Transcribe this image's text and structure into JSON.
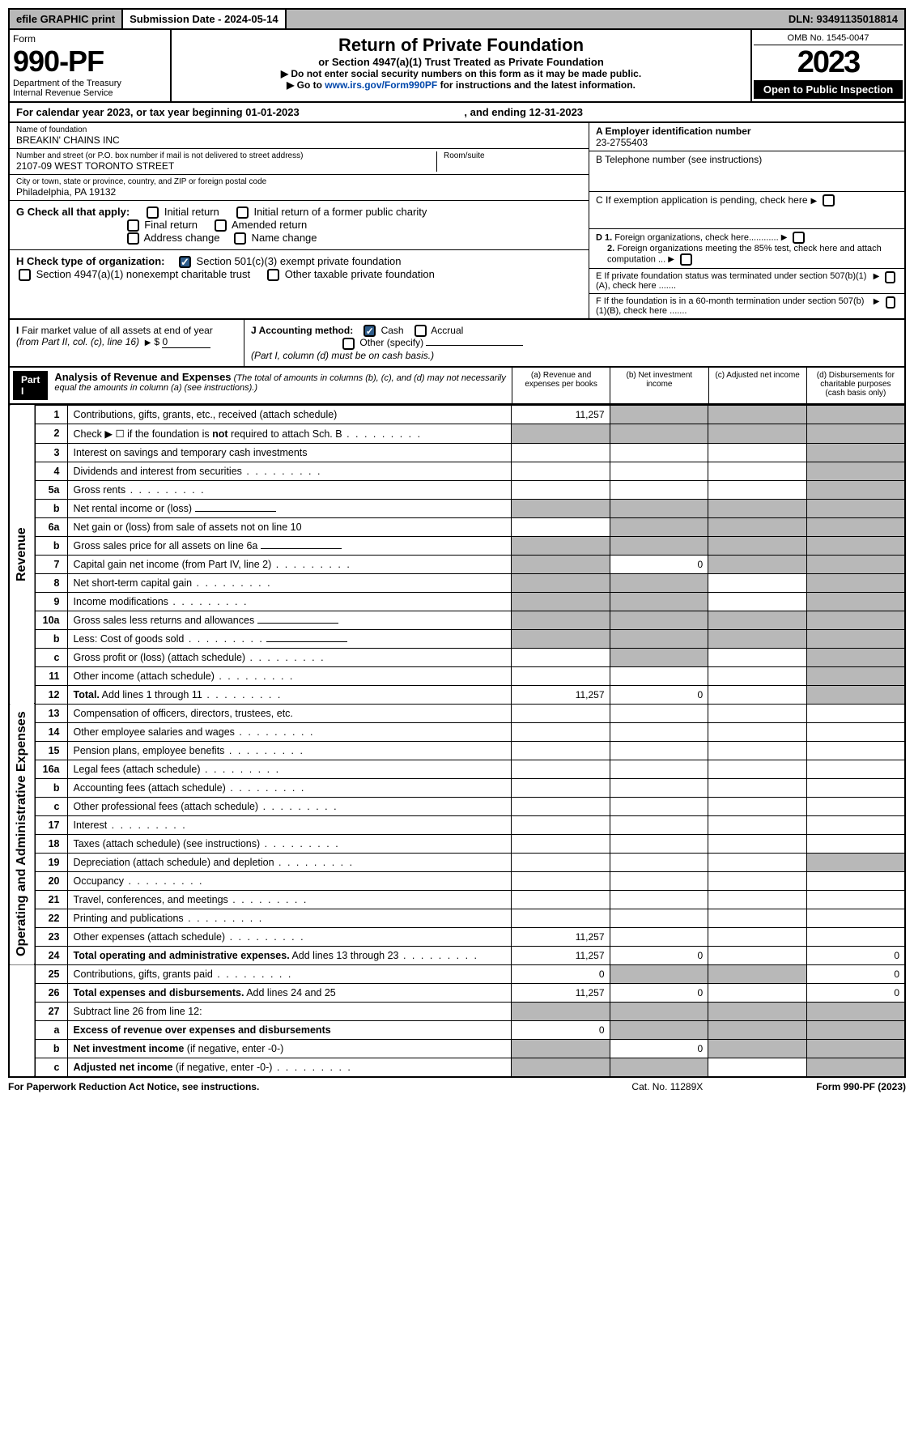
{
  "topbar": {
    "efile": "efile GRAPHIC print",
    "submission_label": "Submission Date - 2024-05-14",
    "dln": "DLN: 93491135018814"
  },
  "header": {
    "form_label": "Form",
    "form_no": "990-PF",
    "dept": "Department of the Treasury\nInternal Revenue Service",
    "title": "Return of Private Foundation",
    "subtitle": "or Section 4947(a)(1) Trust Treated as Private Foundation",
    "note1": "▶ Do not enter social security numbers on this form as it may be made public.",
    "note2_pre": "▶ Go to ",
    "note2_link": "www.irs.gov/Form990PF",
    "note2_post": " for instructions and the latest information.",
    "omb": "OMB No. 1545-0047",
    "year": "2023",
    "open": "Open to Public Inspection"
  },
  "calyear": {
    "pre": "For calendar year 2023, or tax year beginning ",
    "begin": "01-01-2023",
    "mid": ", and ending ",
    "end": "12-31-2023"
  },
  "info": {
    "name_label": "Name of foundation",
    "name": "BREAKIN' CHAINS INC",
    "addr_label": "Number and street (or P.O. box number if mail is not delivered to street address)",
    "addr": "2107-09 WEST TORONTO STREET",
    "room_label": "Room/suite",
    "city_label": "City or town, state or province, country, and ZIP or foreign postal code",
    "city": "Philadelphia, PA  19132",
    "a_label": "A Employer identification number",
    "a_val": "23-2755403",
    "b_label": "B Telephone number (see instructions)",
    "c_label": "C If exemption application is pending, check here",
    "d1": "D 1. Foreign organizations, check here............",
    "d2": "2. Foreign organizations meeting the 85% test, check here and attach computation ...",
    "e_label": "E  If private foundation status was terminated under section 507(b)(1)(A), check here .......",
    "f_label": "F  If the foundation is in a 60-month termination under section 507(b)(1)(B), check here .......",
    "g_label": "G Check all that apply:",
    "g_opts": [
      "Initial return",
      "Initial return of a former public charity",
      "Final return",
      "Amended return",
      "Address change",
      "Name change"
    ],
    "h_label": "H Check type of organization:",
    "h_opt1": "Section 501(c)(3) exempt private foundation",
    "h_opt2": "Section 4947(a)(1) nonexempt charitable trust",
    "h_opt3": "Other taxable private foundation",
    "i_label": "I Fair market value of all assets at end of year (from Part II, col. (c), line 16)",
    "i_val": "0",
    "j_label": "J Accounting method:",
    "j_cash": "Cash",
    "j_accrual": "Accrual",
    "j_other": "Other (specify)",
    "j_note": "(Part I, column (d) must be on cash basis.)"
  },
  "part1": {
    "label": "Part I",
    "title": "Analysis of Revenue and Expenses",
    "desc": "(The total of amounts in columns (b), (c), and (d) may not necessarily equal the amounts in column (a) (see instructions).)",
    "col_a": "(a)   Revenue and expenses per books",
    "col_b": "(b)   Net investment income",
    "col_c": "(c)   Adjusted net income",
    "col_d": "(d)   Disbursements for charitable purposes (cash basis only)"
  },
  "side_labels": {
    "revenue": "Revenue",
    "opex": "Operating and Administrative Expenses"
  },
  "rows": [
    {
      "n": "1",
      "d": "Contributions, gifts, grants, etc., received (attach schedule)",
      "a": "11,257",
      "grey": [
        false,
        true,
        true,
        true
      ]
    },
    {
      "n": "2",
      "d": "Check ▶ ☐ if the foundation is <b>not</b> required to attach Sch. B",
      "dots": true,
      "grey": [
        true,
        true,
        true,
        true
      ]
    },
    {
      "n": "3",
      "d": "Interest on savings and temporary cash investments",
      "grey": [
        false,
        false,
        false,
        true
      ]
    },
    {
      "n": "4",
      "d": "Dividends and interest from securities",
      "dots": true,
      "grey": [
        false,
        false,
        false,
        true
      ]
    },
    {
      "n": "5a",
      "d": "Gross rents",
      "dots": true,
      "grey": [
        false,
        false,
        false,
        true
      ]
    },
    {
      "n": "b",
      "d": "Net rental income or (loss)",
      "inline": true,
      "grey": [
        true,
        true,
        true,
        true
      ]
    },
    {
      "n": "6a",
      "d": "Net gain or (loss) from sale of assets not on line 10",
      "grey": [
        false,
        true,
        true,
        true
      ]
    },
    {
      "n": "b",
      "d": "Gross sales price for all assets on line 6a",
      "inline": true,
      "grey": [
        true,
        true,
        true,
        true
      ]
    },
    {
      "n": "7",
      "d": "Capital gain net income (from Part IV, line 2)",
      "dots": true,
      "b": "0",
      "grey": [
        true,
        false,
        true,
        true
      ]
    },
    {
      "n": "8",
      "d": "Net short-term capital gain",
      "dots": true,
      "grey": [
        true,
        true,
        false,
        true
      ]
    },
    {
      "n": "9",
      "d": "Income modifications",
      "dots": true,
      "grey": [
        true,
        true,
        false,
        true
      ]
    },
    {
      "n": "10a",
      "d": "Gross sales less returns and allowances",
      "inline": true,
      "grey": [
        true,
        true,
        true,
        true
      ]
    },
    {
      "n": "b",
      "d": "Less: Cost of goods sold",
      "dots": true,
      "inline": true,
      "grey": [
        true,
        true,
        true,
        true
      ]
    },
    {
      "n": "c",
      "d": "Gross profit or (loss) (attach schedule)",
      "dots": true,
      "grey": [
        false,
        true,
        false,
        true
      ]
    },
    {
      "n": "11",
      "d": "Other income (attach schedule)",
      "dots": true,
      "grey": [
        false,
        false,
        false,
        true
      ]
    },
    {
      "n": "12",
      "d": "<b>Total.</b> Add lines 1 through 11",
      "dots": true,
      "a": "11,257",
      "b": "0",
      "grey": [
        false,
        false,
        false,
        true
      ]
    },
    {
      "n": "13",
      "d": "Compensation of officers, directors, trustees, etc.",
      "grey": [
        false,
        false,
        false,
        false
      ]
    },
    {
      "n": "14",
      "d": "Other employee salaries and wages",
      "dots": true,
      "grey": [
        false,
        false,
        false,
        false
      ]
    },
    {
      "n": "15",
      "d": "Pension plans, employee benefits",
      "dots": true,
      "grey": [
        false,
        false,
        false,
        false
      ]
    },
    {
      "n": "16a",
      "d": "Legal fees (attach schedule)",
      "dots": true,
      "grey": [
        false,
        false,
        false,
        false
      ]
    },
    {
      "n": "b",
      "d": "Accounting fees (attach schedule)",
      "dots": true,
      "grey": [
        false,
        false,
        false,
        false
      ]
    },
    {
      "n": "c",
      "d": "Other professional fees (attach schedule)",
      "dots": true,
      "grey": [
        false,
        false,
        false,
        false
      ]
    },
    {
      "n": "17",
      "d": "Interest",
      "dots": true,
      "grey": [
        false,
        false,
        false,
        false
      ]
    },
    {
      "n": "18",
      "d": "Taxes (attach schedule) (see instructions)",
      "dots": true,
      "grey": [
        false,
        false,
        false,
        false
      ]
    },
    {
      "n": "19",
      "d": "Depreciation (attach schedule) and depletion",
      "dots": true,
      "grey": [
        false,
        false,
        false,
        true
      ]
    },
    {
      "n": "20",
      "d": "Occupancy",
      "dots": true,
      "grey": [
        false,
        false,
        false,
        false
      ]
    },
    {
      "n": "21",
      "d": "Travel, conferences, and meetings",
      "dots": true,
      "grey": [
        false,
        false,
        false,
        false
      ]
    },
    {
      "n": "22",
      "d": "Printing and publications",
      "dots": true,
      "grey": [
        false,
        false,
        false,
        false
      ]
    },
    {
      "n": "23",
      "d": "Other expenses (attach schedule)",
      "dots": true,
      "a": "11,257",
      "grey": [
        false,
        false,
        false,
        false
      ]
    },
    {
      "n": "24",
      "d": "<b>Total operating and administrative expenses.</b> Add lines 13 through 23",
      "dots": true,
      "a": "11,257",
      "b": "0",
      "d_val": "0",
      "grey": [
        false,
        false,
        false,
        false
      ]
    },
    {
      "n": "25",
      "d": "Contributions, gifts, grants paid",
      "dots": true,
      "a": "0",
      "d_val": "0",
      "grey": [
        false,
        true,
        true,
        false
      ]
    },
    {
      "n": "26",
      "d": "<b>Total expenses and disbursements.</b> Add lines 24 and 25",
      "a": "11,257",
      "b": "0",
      "d_val": "0",
      "grey": [
        false,
        false,
        false,
        false
      ]
    },
    {
      "n": "27",
      "d": "Subtract line 26 from line 12:",
      "grey": [
        true,
        true,
        true,
        true
      ]
    },
    {
      "n": "a",
      "d": "<b>Excess of revenue over expenses and disbursements</b>",
      "a": "0",
      "grey": [
        false,
        true,
        true,
        true
      ]
    },
    {
      "n": "b",
      "d": "<b>Net investment income</b> (if negative, enter -0-)",
      "b": "0",
      "grey": [
        true,
        false,
        true,
        true
      ]
    },
    {
      "n": "c",
      "d": "<b>Adjusted net income</b> (if negative, enter -0-)",
      "dots": true,
      "grey": [
        true,
        true,
        false,
        true
      ]
    }
  ],
  "footer": {
    "left": "For Paperwork Reduction Act Notice, see instructions.",
    "mid": "Cat. No. 11289X",
    "right": "Form 990-PF (2023)"
  },
  "colors": {
    "grey": "#b8b8b8",
    "link": "#0047ab",
    "check_blue": "#2e5c8a"
  }
}
